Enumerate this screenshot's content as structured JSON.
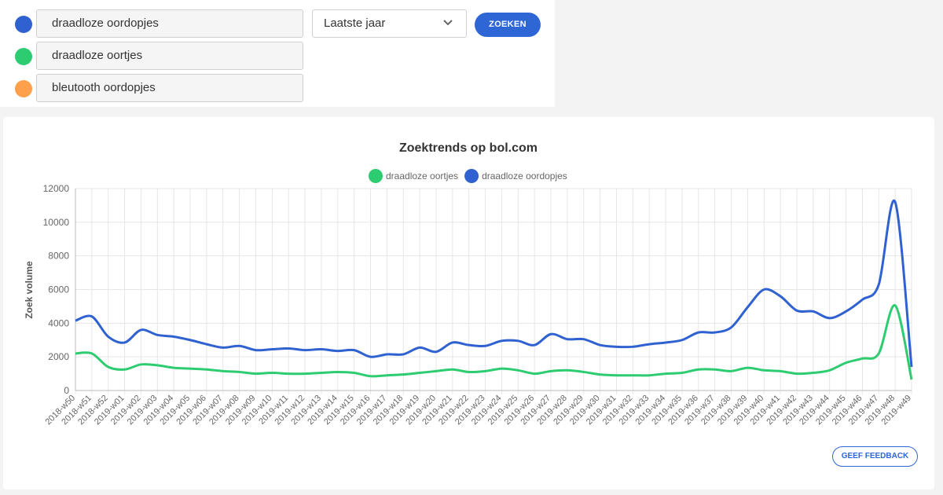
{
  "search": {
    "terms": [
      {
        "label": "draadloze oordopjes",
        "color": "#2f62d0"
      },
      {
        "label": "draadloze oortjes",
        "color": "#2ecc71"
      },
      {
        "label": "bleutooth oordopjes",
        "color": "#ffa04d"
      }
    ],
    "period": "Laatste jaar",
    "button_label": "ZOEKEN"
  },
  "feedback_label": "GEEF FEEDBACK",
  "chart_data": {
    "type": "line",
    "title": "Zoektrends op bol.com",
    "xlabel": "",
    "ylabel": "Zoek volume",
    "ylim": [
      0,
      12000
    ],
    "yticks": [
      0,
      2000,
      4000,
      6000,
      8000,
      10000,
      12000
    ],
    "grid": true,
    "legend_position": "top-center",
    "categories": [
      "2018-w50",
      "2018-w51",
      "2018-w52",
      "2019-w01",
      "2019-w02",
      "2019-w03",
      "2019-w04",
      "2019-w05",
      "2019-w06",
      "2019-w07",
      "2019-w08",
      "2019-w09",
      "2019-w10",
      "2019-w11",
      "2019-w12",
      "2019-w13",
      "2019-w14",
      "2019-w15",
      "2019-w16",
      "2019-w17",
      "2019-w18",
      "2019-w19",
      "2019-w20",
      "2019-w21",
      "2019-w22",
      "2019-w23",
      "2019-w24",
      "2019-w25",
      "2019-w26",
      "2019-w27",
      "2019-w28",
      "2019-w29",
      "2019-w30",
      "2019-w31",
      "2019-w32",
      "2019-w33",
      "2019-w34",
      "2019-w35",
      "2019-w36",
      "2019-w37",
      "2019-w38",
      "2019-w39",
      "2019-w40",
      "2019-w41",
      "2019-w42",
      "2019-w43",
      "2019-w44",
      "2019-w45",
      "2019-w46",
      "2019-w47",
      "2019-w48",
      "2019-w49"
    ],
    "series": [
      {
        "name": "draadloze oortjes",
        "color": "#2ecc71",
        "values": [
          2200,
          2200,
          1400,
          1250,
          1550,
          1500,
          1350,
          1300,
          1250,
          1150,
          1100,
          1000,
          1050,
          1000,
          1000,
          1050,
          1100,
          1050,
          850,
          900,
          950,
          1050,
          1150,
          1250,
          1100,
          1150,
          1300,
          1200,
          1000,
          1150,
          1200,
          1100,
          950,
          900,
          900,
          900,
          1000,
          1050,
          1250,
          1250,
          1150,
          1350,
          1200,
          1150,
          1000,
          1050,
          1200,
          1650,
          1900,
          2200,
          5050,
          650
        ]
      },
      {
        "name": "draadloze oordopjes",
        "color": "#2f62d0",
        "values": [
          4150,
          4400,
          3200,
          2850,
          3600,
          3300,
          3200,
          3000,
          2750,
          2550,
          2650,
          2400,
          2450,
          2500,
          2400,
          2450,
          2350,
          2400,
          2000,
          2150,
          2150,
          2550,
          2300,
          2850,
          2700,
          2650,
          2950,
          2950,
          2700,
          3350,
          3050,
          3050,
          2700,
          2600,
          2600,
          2750,
          2850,
          3000,
          3450,
          3450,
          3750,
          4950,
          6000,
          5600,
          4750,
          4700,
          4300,
          4700,
          5400,
          6300,
          11200,
          1400
        ]
      }
    ]
  }
}
